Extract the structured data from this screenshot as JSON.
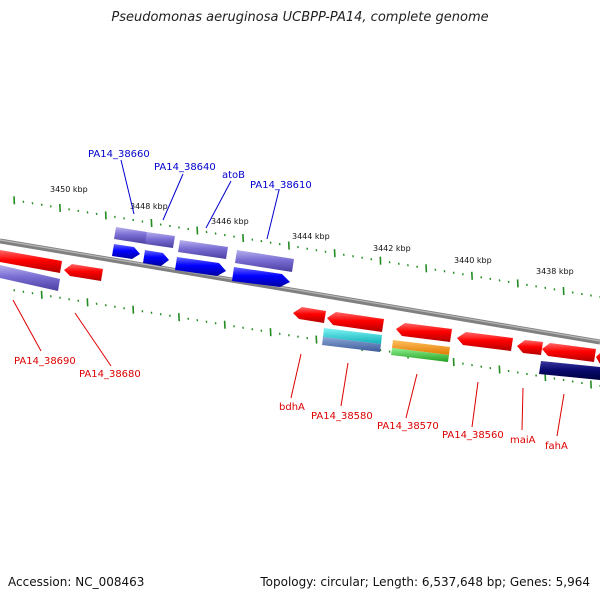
{
  "title": "Pseudomonas aeruginosa UCBPP-PA14, complete genome",
  "footer": {
    "accession": "Accession: NC_008463",
    "topology": "Topology: circular; Length: 6,537,648 bp; Genes: 5,964"
  },
  "colors": {
    "backbone": "#808080",
    "tick": "#228b22",
    "forward_label": "#0000cc",
    "reverse_label": "#dd0000"
  },
  "ticks": [
    {
      "label": "3450 kbp"
    },
    {
      "label": "3448 kbp"
    },
    {
      "label": "3446 kbp"
    },
    {
      "label": "3444 kbp"
    },
    {
      "label": "3442 kbp"
    },
    {
      "label": "3440 kbp"
    },
    {
      "label": "3438 kbp"
    }
  ],
  "genes": [
    {
      "label": "PA14_38660",
      "strand": "forward"
    },
    {
      "label": "PA14_38640",
      "strand": "forward"
    },
    {
      "label": "atoB",
      "strand": "forward"
    },
    {
      "label": "PA14_38610",
      "strand": "forward"
    },
    {
      "label": "PA14_38690",
      "strand": "reverse"
    },
    {
      "label": "PA14_38680",
      "strand": "reverse"
    },
    {
      "label": "bdhA",
      "strand": "reverse"
    },
    {
      "label": "PA14_38580",
      "strand": "reverse"
    },
    {
      "label": "PA14_38570",
      "strand": "reverse"
    },
    {
      "label": "PA14_38560",
      "strand": "reverse"
    },
    {
      "label": "maiA",
      "strand": "reverse"
    },
    {
      "label": "fahA",
      "strand": "reverse"
    }
  ]
}
